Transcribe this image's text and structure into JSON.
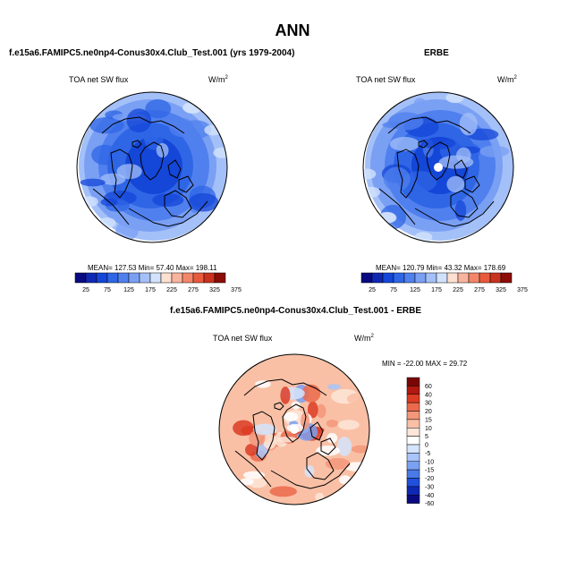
{
  "page": {
    "title": "ANN"
  },
  "colors": {
    "sequential": [
      "#0a0a80",
      "#0f28b4",
      "#1446d7",
      "#2f66e6",
      "#5080ee",
      "#7aa0f4",
      "#a4c0f8",
      "#d2e2fc",
      "#fde0d0",
      "#f9b49e",
      "#f3866a",
      "#e85a3c",
      "#c8321e",
      "#8c0c08"
    ],
    "diverging": [
      "#0a0a80",
      "#0f28b4",
      "#2050dc",
      "#4a7ae8",
      "#7aa0f2",
      "#a8c4f8",
      "#d4e4fc",
      "#ffffff",
      "#fde6d8",
      "#f9c0a6",
      "#f4967a",
      "#ec6a4c",
      "#dc3c24",
      "#b01810",
      "#7a0606"
    ],
    "map_frame": "#000000"
  },
  "chart_data": [
    {
      "type": "heatmap",
      "projection": "north-polar-stereographic",
      "title": "f.e15a6.FAMIPC5.ne0np4-Conus30x4.Club_Test.001 (yrs 1979-2004)",
      "variable": "TOA net SW flux",
      "units": "W/m",
      "units_sup": "2",
      "stats": {
        "mean": "127.53",
        "min": "57.40",
        "max": "198.11",
        "text": "MEAN= 127.53  Min= 57.40  Max= 198.11"
      },
      "colorbar": {
        "orientation": "horizontal",
        "tick_labels": [
          "25",
          "75",
          "125",
          "175",
          "225",
          "275",
          "325",
          "375"
        ],
        "levels": [
          25,
          50,
          75,
          100,
          125,
          150,
          175,
          200,
          225,
          250,
          275,
          300,
          325,
          350,
          375
        ]
      }
    },
    {
      "type": "heatmap",
      "projection": "north-polar-stereographic",
      "title": "ERBE",
      "variable": "TOA net SW flux",
      "units": "W/m",
      "units_sup": "2",
      "stats": {
        "mean": "120.79",
        "min": "43.32",
        "max": "178.69",
        "text": "MEAN= 120.79  Min= 43.32  Max= 178.69"
      },
      "colorbar": {
        "orientation": "horizontal",
        "tick_labels": [
          "25",
          "75",
          "125",
          "175",
          "225",
          "275",
          "325",
          "375"
        ],
        "levels": [
          25,
          50,
          75,
          100,
          125,
          150,
          175,
          200,
          225,
          250,
          275,
          300,
          325,
          350,
          375
        ]
      }
    },
    {
      "type": "heatmap",
      "projection": "north-polar-stereographic",
      "title": "f.e15a6.FAMIPC5.ne0np4-Conus30x4.Club_Test.001 - ERBE",
      "variable": "TOA net SW flux",
      "units": "W/m",
      "units_sup": "2",
      "stats": {
        "min": "-22.00",
        "max": "29.72",
        "text": "MIN = -22.00 MAX =  29.72"
      },
      "colorbar": {
        "orientation": "vertical",
        "tick_labels": [
          "60",
          "40",
          "30",
          "20",
          "15",
          "10",
          "5",
          "0",
          "-5",
          "-10",
          "-15",
          "-20",
          "-30",
          "-40",
          "-60"
        ],
        "levels": [
          60,
          40,
          30,
          20,
          15,
          10,
          5,
          0,
          -5,
          -10,
          -15,
          -20,
          -30,
          -40,
          -60
        ]
      }
    }
  ]
}
